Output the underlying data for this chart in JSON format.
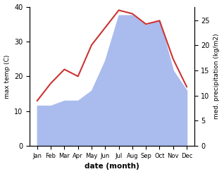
{
  "months": [
    "Jan",
    "Feb",
    "Mar",
    "Apr",
    "May",
    "Jun",
    "Jul",
    "Aug",
    "Sep",
    "Oct",
    "Nov",
    "Dec"
  ],
  "max_temp": [
    13,
    18,
    22,
    20,
    29,
    34,
    39,
    38,
    35,
    36,
    25,
    17
  ],
  "precipitation": [
    8,
    8,
    9,
    9,
    11,
    17,
    26,
    26,
    24,
    25,
    15,
    11
  ],
  "temp_ylim": [
    0,
    40
  ],
  "precip_ylim": [
    0,
    27.7
  ],
  "temp_color": "#cc3333",
  "precip_color": "#aabbee",
  "ylabel_left": "max temp (C)",
  "ylabel_right": "med. precipitation (kg/m2)",
  "xlabel": "date (month)",
  "left_yticks": [
    0,
    10,
    20,
    30,
    40
  ],
  "right_yticks": [
    0,
    5,
    10,
    15,
    20,
    25
  ],
  "bg_color": "#ffffff"
}
